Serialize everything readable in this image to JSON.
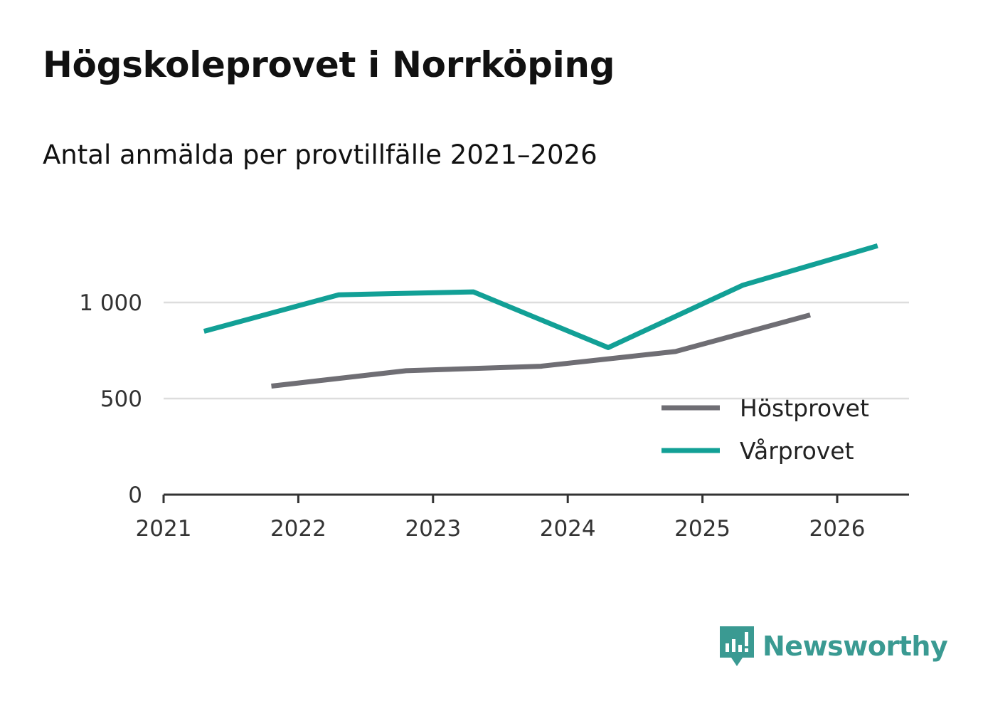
{
  "chart_data": {
    "type": "line",
    "title": "Högskoleprovet i Norrköping",
    "subtitle": "Antal anmälda per provtillfälle 2021–2026",
    "xlabel": "",
    "ylabel": "",
    "x_ticks": [
      "2021",
      "2022",
      "2023",
      "2024",
      "2025",
      "2026"
    ],
    "y_ticks": [
      {
        "value": 0,
        "label": "0"
      },
      {
        "value": 500,
        "label": "500"
      },
      {
        "value": 1000,
        "label": "1 000"
      }
    ],
    "xlim": [
      2021,
      2026.55
    ],
    "ylim": [
      0,
      1300
    ],
    "grid": true,
    "legend_position": "bottom-right",
    "series": [
      {
        "name": "Höstprovet",
        "color": "#6f6e74",
        "x": [
          2021.8,
          2022.8,
          2023.8,
          2024.8,
          2025.8
        ],
        "values": [
          565,
          645,
          668,
          745,
          935
        ]
      },
      {
        "name": "Vårprovet",
        "color": "#12a096",
        "x": [
          2021.3,
          2022.3,
          2023.3,
          2024.3,
          2025.3,
          2026.3
        ],
        "values": [
          850,
          1040,
          1055,
          765,
          1090,
          1295
        ]
      }
    ]
  },
  "brand": {
    "name": "Newsworthy",
    "logo_icon": "bar-chart-speech-bubble-icon",
    "color": "#3a9a92"
  }
}
